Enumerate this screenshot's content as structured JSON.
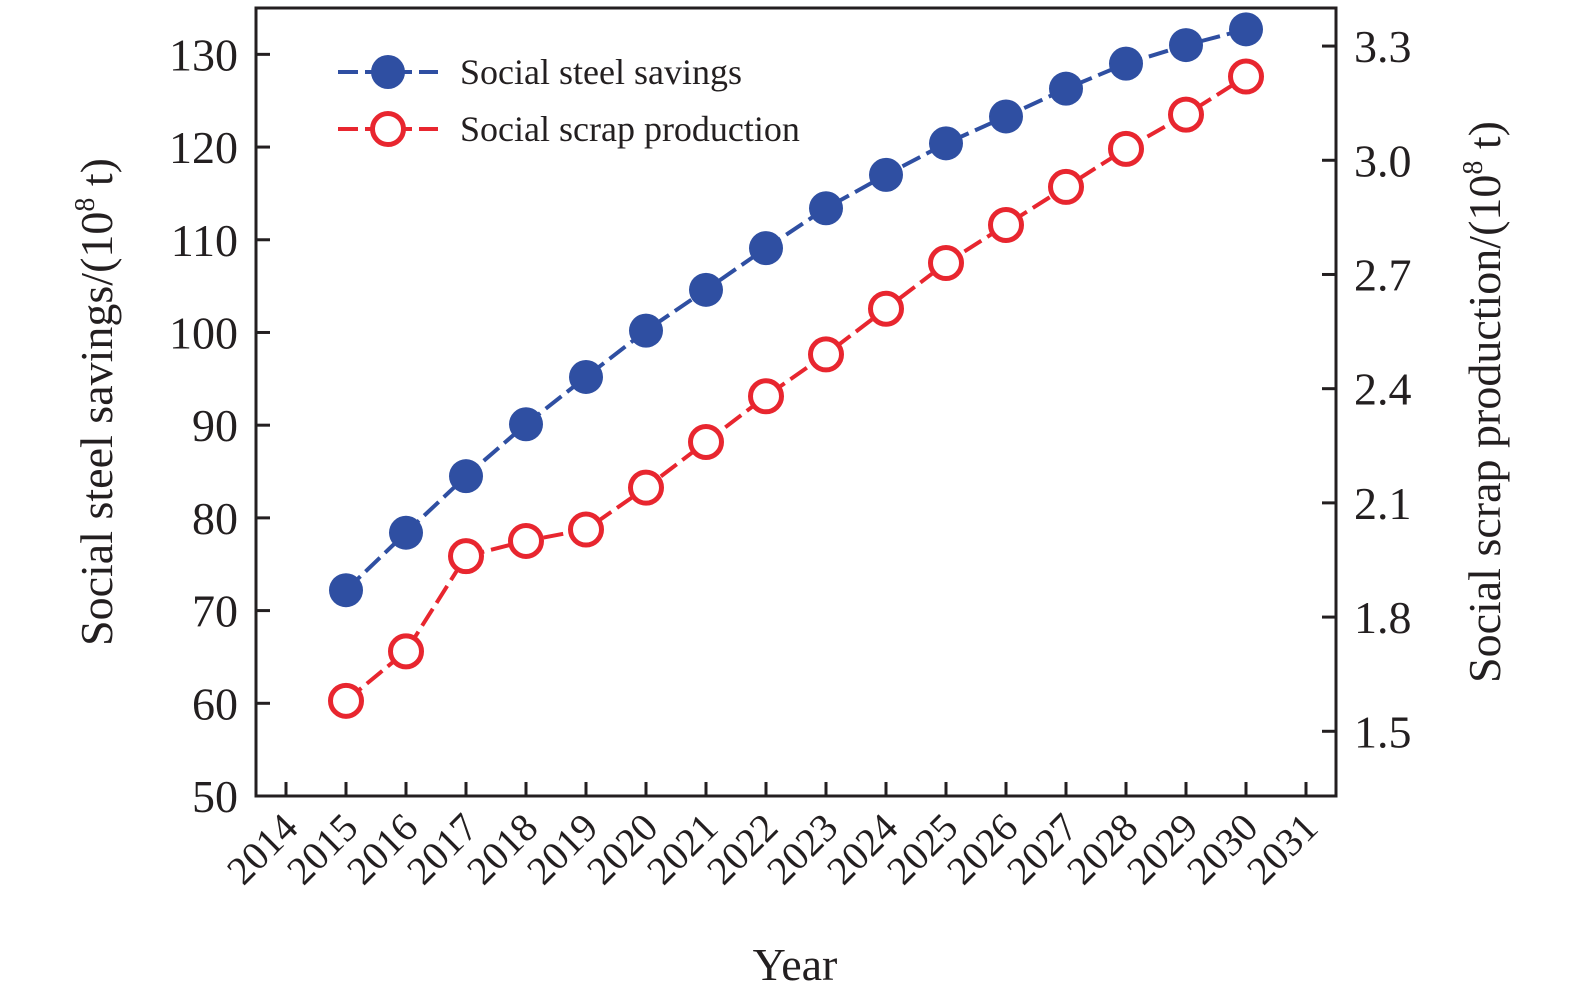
{
  "chart_data": {
    "type": "line",
    "title": "",
    "xlabel": "Year",
    "ylabel_left_main": "Social steel savings/(10",
    "ylabel_left_sup": "8",
    "ylabel_left_end": " t)",
    "ylabel_right_main": "Social scrap production/(10",
    "ylabel_right_sup": "8",
    "ylabel_right_end": " t)",
    "x_ticks": [
      "2014",
      "2015",
      "2016",
      "2017",
      "2018",
      "2019",
      "2020",
      "2021",
      "2022",
      "2023",
      "2024",
      "2025",
      "2026",
      "2027",
      "2028",
      "2029",
      "2030",
      "2031"
    ],
    "xlim": [
      2013.5,
      2031.5
    ],
    "y_left_ticks": [
      "50",
      "60",
      "70",
      "80",
      "90",
      "100",
      "110",
      "120",
      "130"
    ],
    "y_left_lim": [
      50,
      135
    ],
    "y_right_ticks": [
      "1.5",
      "1.8",
      "2.1",
      "2.4",
      "2.7",
      "3.0",
      "3.3"
    ],
    "y_right_lim": [
      1.33,
      3.4
    ],
    "grid": false,
    "legend_position": "top-left",
    "x": [
      2015,
      2016,
      2017,
      2018,
      2019,
      2020,
      2021,
      2022,
      2023,
      2024,
      2025,
      2026,
      2027,
      2028,
      2029,
      2030
    ],
    "series": [
      {
        "name": "Social steel savings",
        "axis": "left",
        "color": "#2f4fa2",
        "marker": "filled-circle",
        "values": [
          72.2,
          78.4,
          84.5,
          90.1,
          95.2,
          100.2,
          104.6,
          109.1,
          113.4,
          117.0,
          120.4,
          123.3,
          126.3,
          129.0,
          131.0,
          132.7
        ]
      },
      {
        "name": "Social scrap production",
        "axis": "right",
        "color": "#e8262f",
        "marker": "open-circle",
        "values": [
          1.58,
          1.71,
          1.96,
          2.0,
          2.03,
          2.14,
          2.26,
          2.38,
          2.49,
          2.61,
          2.73,
          2.83,
          2.93,
          3.03,
          3.12,
          3.22
        ]
      }
    ]
  }
}
